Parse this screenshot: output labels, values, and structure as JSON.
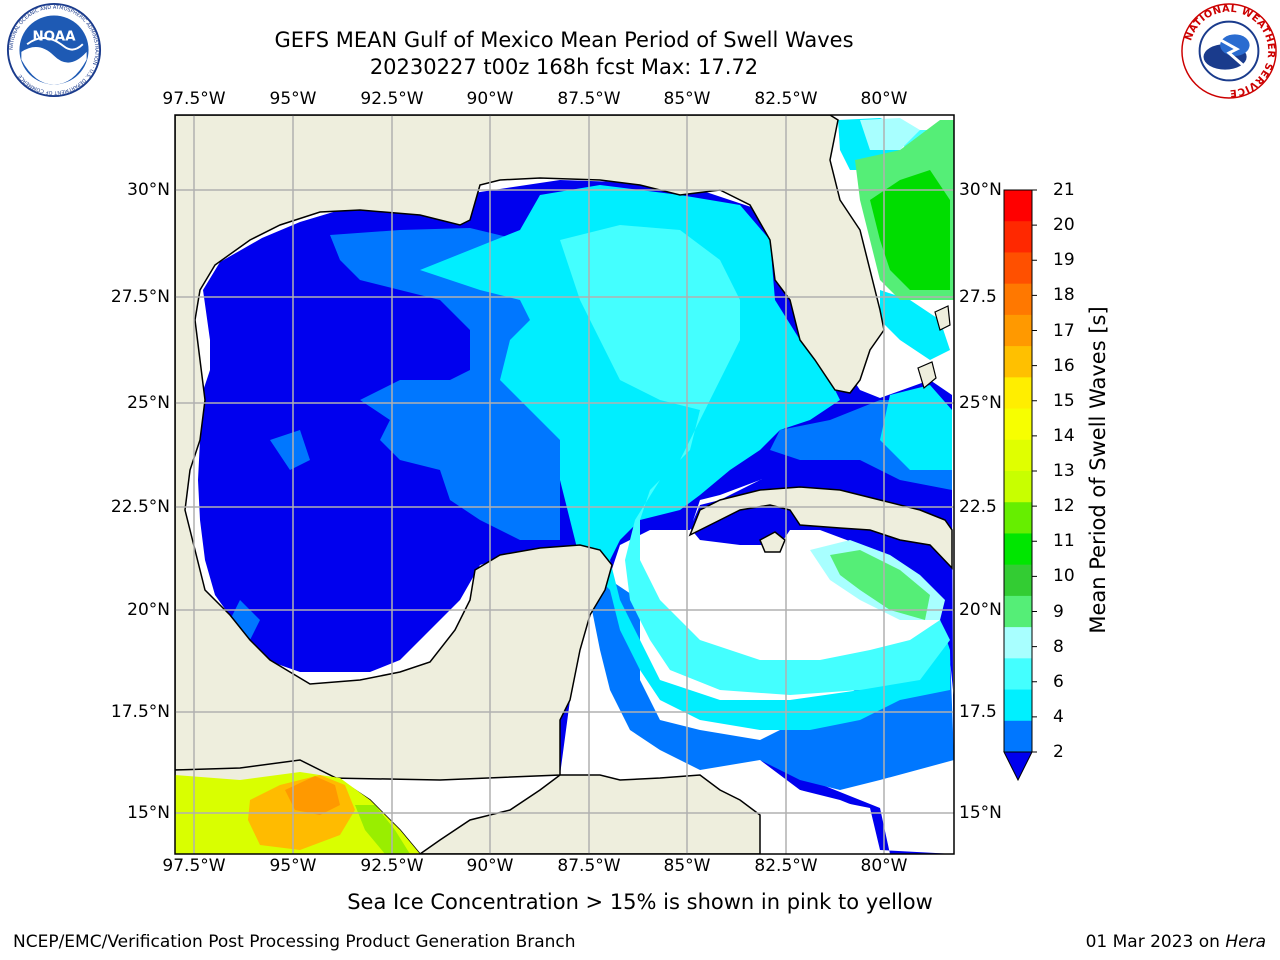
{
  "title_line1": "GEFS MEAN Gulf of Mexico Mean Period of Swell Waves",
  "title_line2": "20230227 t00z 168h fcst   Max: 17.72",
  "logos": {
    "left": {
      "name": "noaa-logo",
      "text": "NOAA",
      "ring_text": "NATIONAL OCEANIC AND ATMOSPHERIC ADMINISTRATION · U.S. DEPARTMENT OF COMMERCE"
    },
    "right": {
      "name": "nws-logo",
      "ring_text": "NATIONAL WEATHER SERVICE"
    }
  },
  "lon_labels": [
    "97.5°W",
    "95°W",
    "92.5°W",
    "90°W",
    "87.5°W",
    "85°W",
    "82.5°W",
    "80°W"
  ],
  "lat_labels_left": [
    "30°N",
    "27.5°N",
    "25°N",
    "22.5°N",
    "20°N",
    "17.5°N",
    "15°N"
  ],
  "lat_labels_right": [
    "30°N",
    "27.5",
    "25°N",
    "22.5",
    "20°N",
    "17.5",
    "15°N"
  ],
  "colorbar": {
    "title": "Mean Period of Swell Waves [s]",
    "ticks": [
      "21",
      "20",
      "19",
      "18",
      "17",
      "16",
      "15",
      "14",
      "13",
      "12",
      "11",
      "10",
      "9",
      "8",
      "6",
      "4",
      "2"
    ],
    "colors": [
      "#ff0000",
      "#ff2800",
      "#ff5000",
      "#ff7800",
      "#ff9900",
      "#ffc000",
      "#ffee00",
      "#f7ff00",
      "#e0ff00",
      "#c8ff00",
      "#66ee00",
      "#00e600",
      "#33cc33",
      "#55ee77",
      "#a8ffff",
      "#44ffff",
      "#00f0ff",
      "#0077ff",
      "#0000ee"
    ]
  },
  "colors": {
    "land": "#eeeedd",
    "period_2_4": "#0000ee",
    "period_4_6": "#0077ff",
    "period_6_8": "#00eeff",
    "period_8_9": "#44ffff",
    "period_9_10": "#a8ffff",
    "period_10_11": "#55ee77",
    "period_11_12": "#00dd00",
    "grid": "#b0b0b0"
  },
  "ice_note": "Sea Ice Concentration > 15% is shown in pink to yellow",
  "footer_left": "NCEP/EMC/Verification Post Processing Product Generation Branch",
  "footer_right_date": "01 Mar 2023 on",
  "footer_right_machine": "Hera"
}
